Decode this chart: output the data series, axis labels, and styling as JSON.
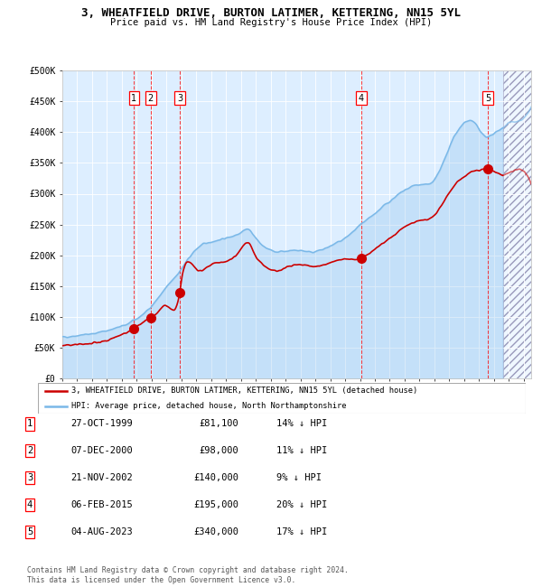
{
  "title": "3, WHEATFIELD DRIVE, BURTON LATIMER, KETTERING, NN15 5YL",
  "subtitle": "Price paid vs. HM Land Registry's House Price Index (HPI)",
  "ylim": [
    0,
    500000
  ],
  "yticks": [
    0,
    50000,
    100000,
    150000,
    200000,
    250000,
    300000,
    350000,
    400000,
    450000,
    500000
  ],
  "ytick_labels": [
    "£0",
    "£50K",
    "£100K",
    "£150K",
    "£200K",
    "£250K",
    "£300K",
    "£350K",
    "£400K",
    "£450K",
    "£500K"
  ],
  "hpi_color": "#7ab8e8",
  "price_color": "#cc0000",
  "bg_color": "#ddeeff",
  "sale_dates": [
    1999.82,
    2000.93,
    2002.89,
    2015.09,
    2023.59
  ],
  "sale_prices": [
    81100,
    98000,
    140000,
    195000,
    340000
  ],
  "sale_numbers": [
    "1",
    "2",
    "3",
    "4",
    "5"
  ],
  "legend_price_label": "3, WHEATFIELD DRIVE, BURTON LATIMER, KETTERING, NN15 5YL (detached house)",
  "legend_hpi_label": "HPI: Average price, detached house, North Northamptonshire",
  "table_rows": [
    [
      "1",
      "27-OCT-1999",
      "£81,100",
      "14% ↓ HPI"
    ],
    [
      "2",
      "07-DEC-2000",
      "£98,000",
      "11% ↓ HPI"
    ],
    [
      "3",
      "21-NOV-2002",
      "£140,000",
      "9% ↓ HPI"
    ],
    [
      "4",
      "06-FEB-2015",
      "£195,000",
      "20% ↓ HPI"
    ],
    [
      "5",
      "04-AUG-2023",
      "£340,000",
      "17% ↓ HPI"
    ]
  ],
  "footnote": "Contains HM Land Registry data © Crown copyright and database right 2024.\nThis data is licensed under the Open Government Licence v3.0.",
  "future_hatch_start": 2024.6,
  "xlim_start": 1995.0,
  "xlim_end": 2026.5
}
